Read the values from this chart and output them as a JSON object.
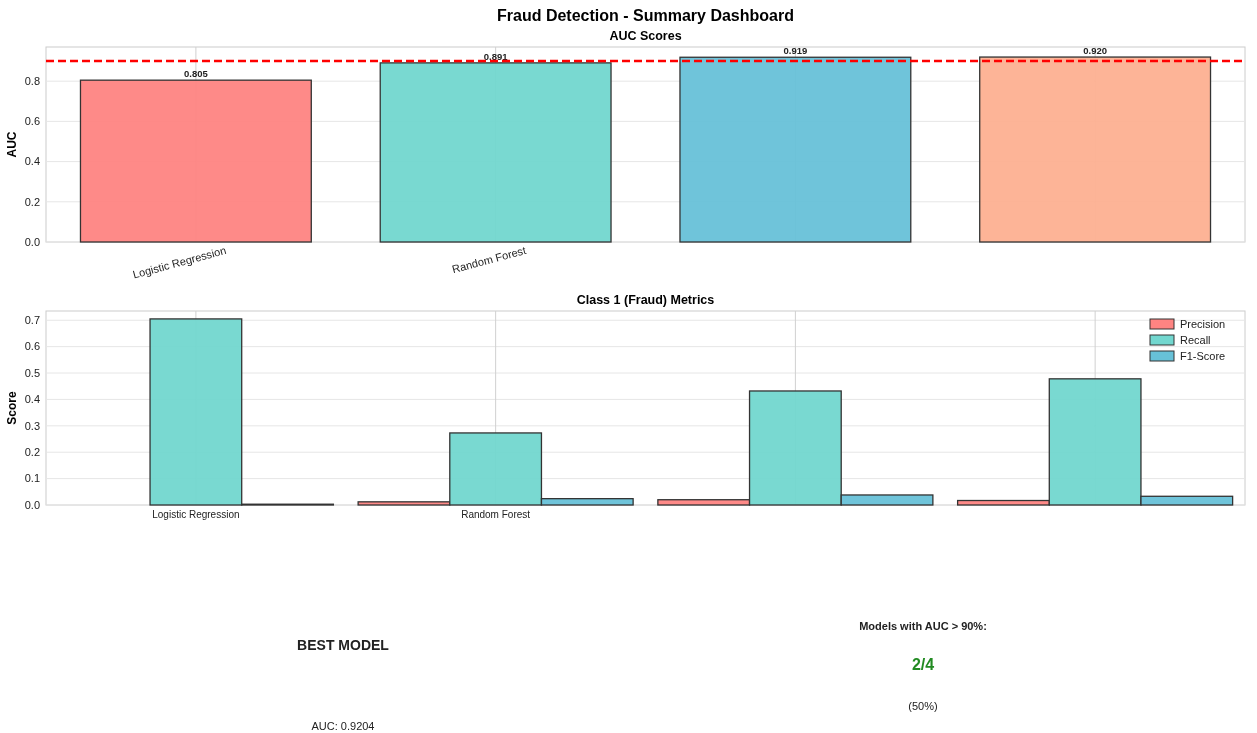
{
  "chart_data": [
    {
      "type": "bar",
      "title": "Fraud Detection - Summary Dashboard",
      "subtitle": "AUC Scores",
      "ylabel": "AUC",
      "categories": [
        "Logistic Regression",
        "Random Forest",
        null,
        null
      ],
      "values": [
        0.805,
        0.891,
        0.919,
        0.92
      ],
      "colors": [
        "#fe8482",
        "#72d7cf",
        "#67c1d8",
        "#fdb091"
      ],
      "data_labels": true,
      "value_labels": [
        "0.805",
        "0.891",
        "0.919",
        "0.920"
      ],
      "ylim": [
        0,
        0.97
      ],
      "yticks": [
        {
          "value": 0,
          "label": "0.0"
        },
        0.2,
        0.4,
        0.6,
        0.8
      ],
      "grid": true,
      "ref_lines": [
        {
          "axis": "y",
          "value": 0.9,
          "color": "#ff0000",
          "line_style": "dashed"
        }
      ]
    },
    {
      "type": "bar",
      "title": "Class 1 (Fraud) Metrics",
      "ylabel": "Score",
      "categories": [
        "Logistic Regression",
        "Random Forest",
        null,
        null
      ],
      "series": [
        {
          "name": "Precision",
          "color": "#fe8482",
          "values": [
            null,
            0.012,
            0.02,
            0.017
          ]
        },
        {
          "name": "Recall",
          "color": "#72d7cf",
          "values": [
            0.705,
            0.273,
            0.432,
            0.478
          ]
        },
        {
          "name": "F1-Score",
          "color": "#67c1d8",
          "values": [
            0.003,
            0.024,
            0.038,
            0.033
          ]
        }
      ],
      "ylim": [
        0,
        0.735
      ],
      "yticks": [
        {
          "value": 0,
          "label": "0.0"
        },
        0.1,
        0.2,
        0.3,
        0.4,
        0.5,
        0.6,
        0.7
      ],
      "grid": true,
      "legend": "top right"
    },
    {
      "type": "other",
      "title": "BEST MODEL",
      "annotations": [
        "AUC: 0.9204"
      ]
    },
    {
      "type": "other",
      "title": "Models with AUC > 90%:",
      "annotations": [
        "2/4",
        "(50%)"
      ]
    }
  ]
}
